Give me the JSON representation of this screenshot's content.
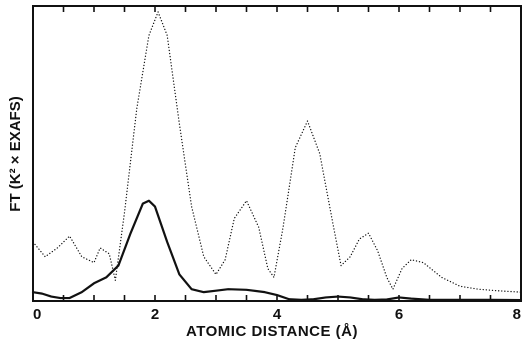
{
  "chart_data": {
    "type": "line",
    "xlabel": "ATOMIC DISTANCE (Å)",
    "ylabel": "FT (K² × EXAFS)",
    "xlim": [
      0,
      8
    ],
    "ylim": [
      0,
      1
    ],
    "x_ticks": [
      "0",
      "2",
      "4",
      "6",
      "8"
    ],
    "grid": false,
    "line_color": "#111111",
    "series": [
      {
        "style": "solid",
        "points": [
          [
            0,
            0.03
          ],
          [
            0.15,
            0.025
          ],
          [
            0.3,
            0.015
          ],
          [
            0.45,
            0.01
          ],
          [
            0.6,
            0.01
          ],
          [
            0.8,
            0.03
          ],
          [
            1.0,
            0.06
          ],
          [
            1.2,
            0.08
          ],
          [
            1.4,
            0.12
          ],
          [
            1.6,
            0.23
          ],
          [
            1.8,
            0.33
          ],
          [
            1.9,
            0.34
          ],
          [
            2.0,
            0.32
          ],
          [
            2.2,
            0.2
          ],
          [
            2.4,
            0.09
          ],
          [
            2.6,
            0.04
          ],
          [
            2.8,
            0.03
          ],
          [
            3.0,
            0.035
          ],
          [
            3.2,
            0.04
          ],
          [
            3.5,
            0.038
          ],
          [
            3.8,
            0.03
          ],
          [
            4.0,
            0.02
          ],
          [
            4.2,
            0.006
          ],
          [
            4.4,
            0.004
          ],
          [
            4.6,
            0.006
          ],
          [
            4.8,
            0.012
          ],
          [
            5.0,
            0.015
          ],
          [
            5.2,
            0.012
          ],
          [
            5.4,
            0.006
          ],
          [
            5.6,
            0.004
          ],
          [
            5.8,
            0.005
          ],
          [
            6.0,
            0.012
          ],
          [
            6.2,
            0.008
          ],
          [
            6.5,
            0.004
          ],
          [
            7.0,
            0.004
          ],
          [
            7.5,
            0.004
          ],
          [
            8.0,
            0.003
          ]
        ]
      },
      {
        "style": "dotted",
        "points": [
          [
            0,
            0.2
          ],
          [
            0.2,
            0.15
          ],
          [
            0.4,
            0.18
          ],
          [
            0.6,
            0.22
          ],
          [
            0.8,
            0.15
          ],
          [
            1.0,
            0.13
          ],
          [
            1.1,
            0.18
          ],
          [
            1.25,
            0.16
          ],
          [
            1.35,
            0.07
          ],
          [
            1.5,
            0.3
          ],
          [
            1.7,
            0.65
          ],
          [
            1.9,
            0.9
          ],
          [
            2.05,
            0.98
          ],
          [
            2.2,
            0.9
          ],
          [
            2.4,
            0.6
          ],
          [
            2.6,
            0.32
          ],
          [
            2.8,
            0.15
          ],
          [
            3.0,
            0.09
          ],
          [
            3.15,
            0.14
          ],
          [
            3.3,
            0.28
          ],
          [
            3.5,
            0.34
          ],
          [
            3.7,
            0.25
          ],
          [
            3.85,
            0.11
          ],
          [
            3.95,
            0.08
          ],
          [
            4.1,
            0.25
          ],
          [
            4.3,
            0.52
          ],
          [
            4.5,
            0.61
          ],
          [
            4.7,
            0.5
          ],
          [
            4.9,
            0.28
          ],
          [
            5.05,
            0.12
          ],
          [
            5.2,
            0.15
          ],
          [
            5.35,
            0.21
          ],
          [
            5.5,
            0.23
          ],
          [
            5.65,
            0.17
          ],
          [
            5.8,
            0.08
          ],
          [
            5.9,
            0.04
          ],
          [
            6.05,
            0.11
          ],
          [
            6.2,
            0.14
          ],
          [
            6.4,
            0.13
          ],
          [
            6.7,
            0.08
          ],
          [
            7.0,
            0.05
          ],
          [
            7.3,
            0.04
          ],
          [
            7.6,
            0.035
          ],
          [
            8.0,
            0.03
          ]
        ]
      }
    ]
  }
}
